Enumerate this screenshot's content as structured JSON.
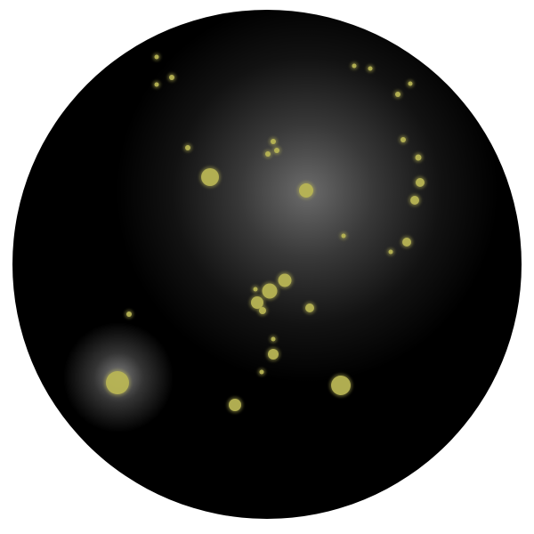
{
  "view": {
    "background_color": "#ffffff",
    "disc_color": "#000000",
    "glow_color": "#ffffff",
    "star_color": "#b9b555",
    "star_count": 40
  }
}
